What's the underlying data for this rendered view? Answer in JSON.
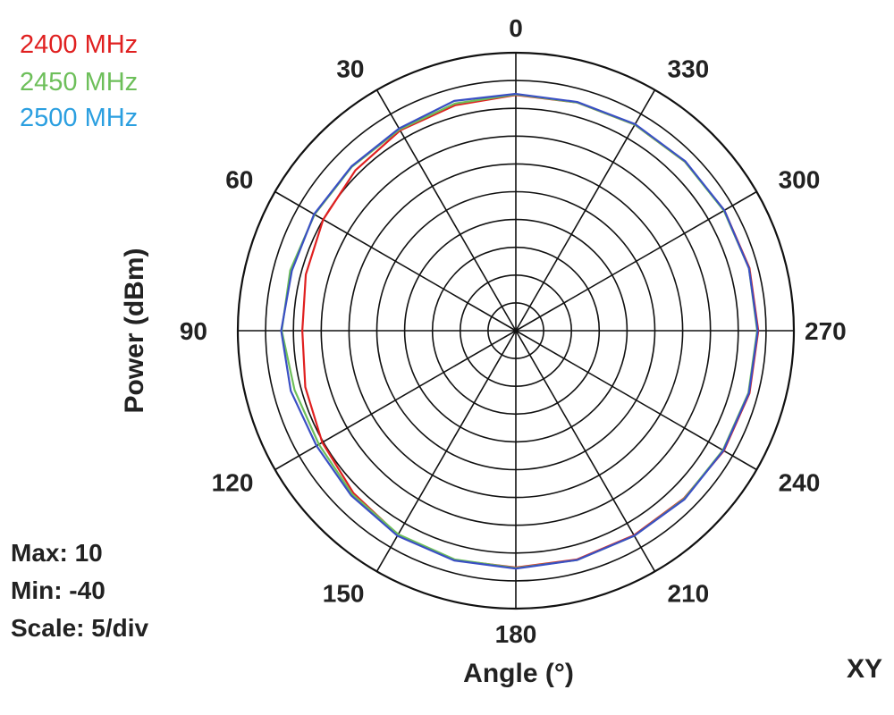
{
  "chart_data": {
    "type": "polar-line",
    "xlabel": "Angle  (°)",
    "ylabel": "Power  (dBm)",
    "plane_label": "XY",
    "r_range": [
      -40,
      10
    ],
    "r_scale": 5,
    "angle_direction": "counterclockwise",
    "angle_zero": "top",
    "angle_tick_step": 30,
    "angle_ticks": [
      "0",
      "30",
      "60",
      "90",
      "120",
      "150",
      "180",
      "210",
      "240",
      "270",
      "300",
      "330"
    ],
    "grid": true,
    "legend_position": "top-left",
    "info": {
      "max_label": "Max: 10",
      "min_label": "Min: -40",
      "scale_label": "Scale: 5/div"
    },
    "angles": [
      0,
      15,
      30,
      45,
      60,
      75,
      90,
      105,
      120,
      135,
      150,
      165,
      180,
      195,
      210,
      225,
      240,
      255,
      270,
      285,
      300,
      315,
      330,
      345
    ],
    "series": [
      {
        "name": "2400 MHz",
        "color": "#e02020",
        "values": [
          2.4,
          2.0,
          1.6,
          0.8,
          0.0,
          -0.9,
          -1.6,
          -0.8,
          0.2,
          1.3,
          2.4,
          2.7,
          2.6,
          2.6,
          2.5,
          2.7,
          3.2,
          3.5,
          3.6,
          3.5,
          3.3,
          3.0,
          2.8,
          2.5
        ]
      },
      {
        "name": "2450 MHz",
        "color": "#6dbf5a",
        "values": [
          2.5,
          2.3,
          1.8,
          1.7,
          1.8,
          2.0,
          2.1,
          1.2,
          0.9,
          1.6,
          2.3,
          2.6,
          2.7,
          2.7,
          2.6,
          2.8,
          3.0,
          3.3,
          3.4,
          3.4,
          3.2,
          3.0,
          2.8,
          2.5
        ]
      },
      {
        "name": "2500 MHz",
        "color": "#2b9fe0",
        "stroke": "#3a4fc4",
        "values": [
          2.6,
          2.8,
          2.0,
          1.8,
          1.9,
          1.7,
          2.2,
          1.9,
          1.4,
          1.9,
          2.6,
          2.8,
          2.8,
          2.7,
          2.6,
          2.9,
          3.1,
          3.4,
          3.5,
          3.4,
          3.3,
          3.1,
          2.9,
          2.6
        ]
      }
    ]
  }
}
